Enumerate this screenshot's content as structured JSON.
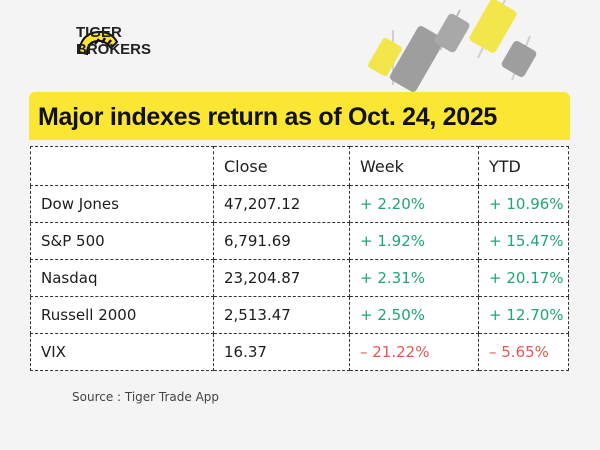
{
  "brand": {
    "line1": "TIGER",
    "line2": "BROKERS",
    "accent": "#fbe733"
  },
  "title": "Major indexes return as of Oct. 24, 2025",
  "table": {
    "headers": [
      "",
      "Close",
      "Week",
      "YTD"
    ],
    "rows": [
      {
        "name": "Dow Jones",
        "close": "47,207.12",
        "week": "+ 2.20%",
        "ytd": "+ 10.96%",
        "trend": "up"
      },
      {
        "name": "S&P 500",
        "close": "6,791.69",
        "week": "+ 1.92%",
        "ytd": "+ 15.47%",
        "trend": "up"
      },
      {
        "name": "Nasdaq",
        "close": "23,204.87",
        "week": "+ 2.31%",
        "ytd": "+ 20.17%",
        "trend": "up"
      },
      {
        "name": "Russell 2000",
        "close": "2,513.47",
        "week": "+ 2.50%",
        "ytd": "+ 12.70%",
        "trend": "up"
      },
      {
        "name": "VIX",
        "close": "16.37",
        "week": "– 21.22%",
        "ytd": "– 5.65%",
        "trend": "down"
      }
    ]
  },
  "colors": {
    "positive": "#1fa673",
    "negative": "#e25a55"
  },
  "source": "Source : Tiger Trade App"
}
